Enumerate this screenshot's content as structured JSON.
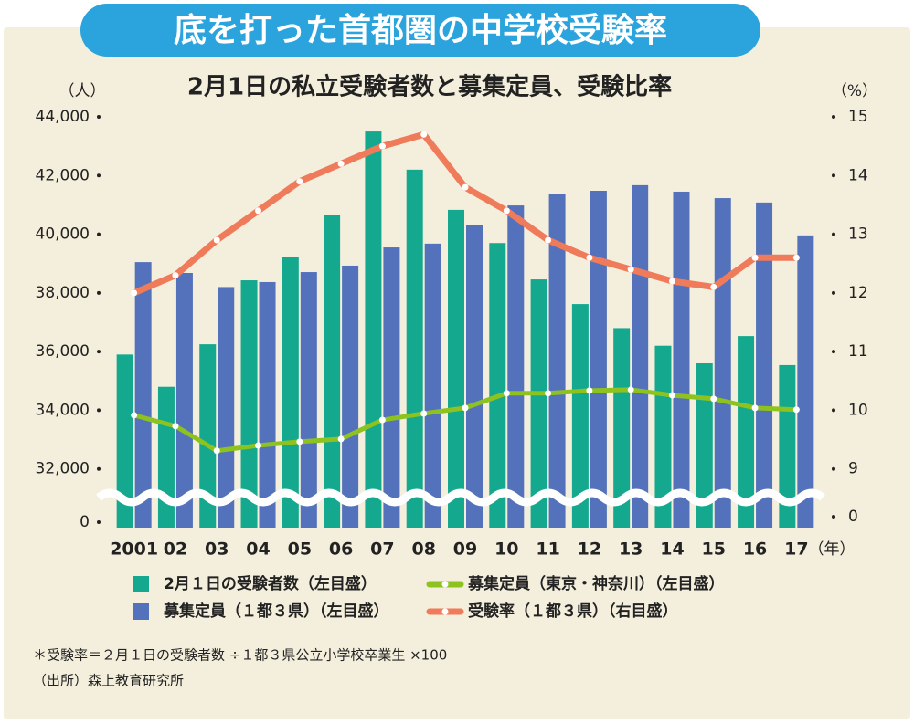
{
  "chart_data": {
    "type": "bar-line",
    "title": "底を打った首都圏の中学校受験率",
    "subtitle": "2月1日の私立受験者数と募集定員、受験比率",
    "y_label": "（人）",
    "y2_label": "（%）",
    "x_unit": "（年）",
    "categories": [
      "2001",
      "02",
      "03",
      "04",
      "05",
      "06",
      "07",
      "08",
      "09",
      "10",
      "11",
      "12",
      "13",
      "14",
      "15",
      "16",
      "17"
    ],
    "series": [
      {
        "name": "2月１日の受験者数（左目盛）",
        "kind": "bar",
        "color": "#14a98e",
        "values": [
          35900,
          34800,
          36250,
          38430,
          39240,
          40670,
          43500,
          42200,
          40830,
          39700,
          38460,
          37620,
          36800,
          36200,
          35600,
          36530,
          35540
        ]
      },
      {
        "name": "募集定員（１都３県）（左目盛）",
        "kind": "bar",
        "color": "#5472bb",
        "values": [
          39050,
          38680,
          38200,
          38370,
          38710,
          38930,
          39550,
          39680,
          40300,
          40980,
          41360,
          41480,
          41670,
          41450,
          41230,
          41080,
          39960
        ]
      },
      {
        "name": "募集定員（東京・神奈川）（左目盛）",
        "kind": "line",
        "color": "#8dc21f",
        "values": [
          33830,
          33460,
          32620,
          32800,
          32930,
          33020,
          33670,
          33890,
          34080,
          34580,
          34580,
          34670,
          34700,
          34510,
          34390,
          34080,
          34020
        ]
      },
      {
        "name": "受験率（１都３県）（右目盛）",
        "kind": "line",
        "color": "#ef7b5a",
        "axis": "y2",
        "values": [
          12.0,
          12.3,
          12.9,
          13.4,
          13.9,
          14.2,
          14.5,
          14.7,
          13.8,
          13.4,
          12.9,
          12.6,
          12.4,
          12.2,
          12.1,
          12.6,
          12.6
        ]
      }
    ],
    "ylim": [
      30000,
      44000
    ],
    "yticks": [
      {
        "value": 0,
        "label": "0"
      },
      {
        "value": 32000,
        "label": "32,000"
      },
      {
        "value": 34000,
        "label": "34,000"
      },
      {
        "value": 36000,
        "label": "36,000"
      },
      {
        "value": 38000,
        "label": "38,000"
      },
      {
        "value": 40000,
        "label": "40,000"
      },
      {
        "value": 42000,
        "label": "42,000"
      },
      {
        "value": 44000,
        "label": "44,000"
      }
    ],
    "y2lim": [
      8,
      15
    ],
    "y2ticks": [
      0,
      9,
      10,
      11,
      12,
      13,
      14,
      15
    ],
    "axis_break": true,
    "grid": false,
    "notes": [
      "＊受験率＝２月１日の受験者数 ÷１都３県公立小学校卒業生 ×100",
      "（出所）森上教育研究所"
    ]
  }
}
